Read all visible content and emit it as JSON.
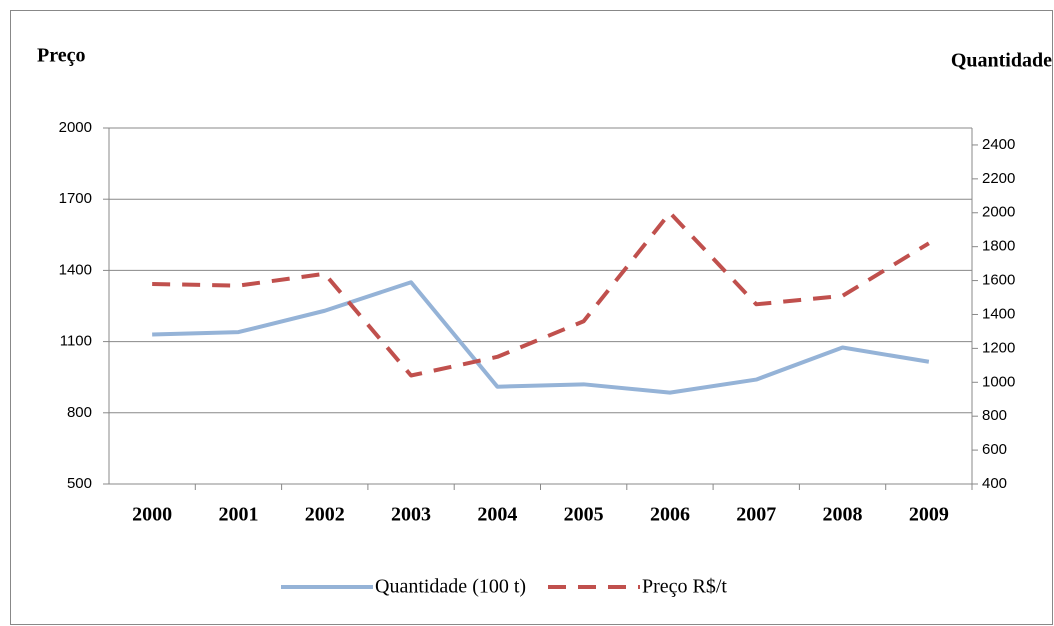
{
  "chart_data": {
    "type": "line",
    "y_label": "Preço",
    "y2_label": "Quantidade",
    "categories": [
      "2000",
      "2001",
      "2002",
      "2003",
      "2004",
      "2005",
      "2006",
      "2007",
      "2008",
      "2009"
    ],
    "series": [
      {
        "name": "Quantidade (100 t)",
        "color": "#95b3d7",
        "dashed": false,
        "values": [
          1130,
          1140,
          1230,
          1350,
          910,
          920,
          885,
          940,
          1075,
          1015
        ]
      },
      {
        "name": "Preço R$/t",
        "color": "#c0504d",
        "dashed": true,
        "axis": "y2",
        "values": [
          1580,
          1570,
          1640,
          1040,
          1150,
          1360,
          2000,
          1460,
          1510,
          1820
        ]
      }
    ],
    "ylim": [
      500,
      2000
    ],
    "yticks": [
      500,
      800,
      1100,
      1400,
      1700,
      2000
    ],
    "y2lim": [
      400,
      2500
    ],
    "y2ticks": [
      400,
      600,
      800,
      1000,
      1200,
      1400,
      1600,
      1800,
      2000,
      2200,
      2400
    ],
    "grid": true
  }
}
